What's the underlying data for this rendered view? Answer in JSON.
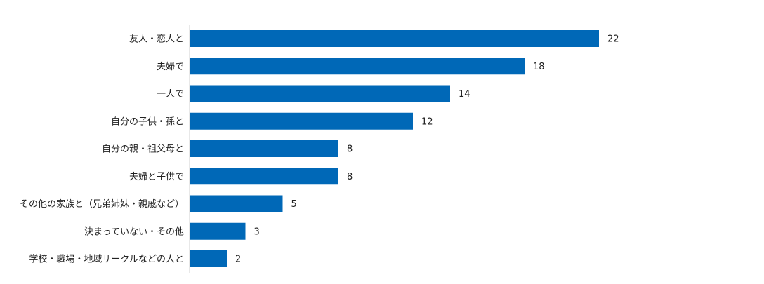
{
  "chart_data": {
    "type": "bar",
    "orientation": "horizontal",
    "title": "",
    "xlabel": "",
    "ylabel": "",
    "categories": [
      "友人・恋人と",
      "夫婦で",
      "一人で",
      "自分の子供・孫と",
      "自分の親・祖父母と",
      "夫婦と子供で",
      "その他の家族と（兄弟姉妹・親戚など）",
      "決まっていない・その他",
      "学校・職場・地域サークルなどの人と"
    ],
    "values": [
      22,
      18,
      14,
      12,
      8,
      8,
      5,
      3,
      2
    ],
    "xlim": [
      0,
      22
    ],
    "bar_color": "#0068b7",
    "grid": false,
    "legend": "none",
    "data_labels": true
  }
}
